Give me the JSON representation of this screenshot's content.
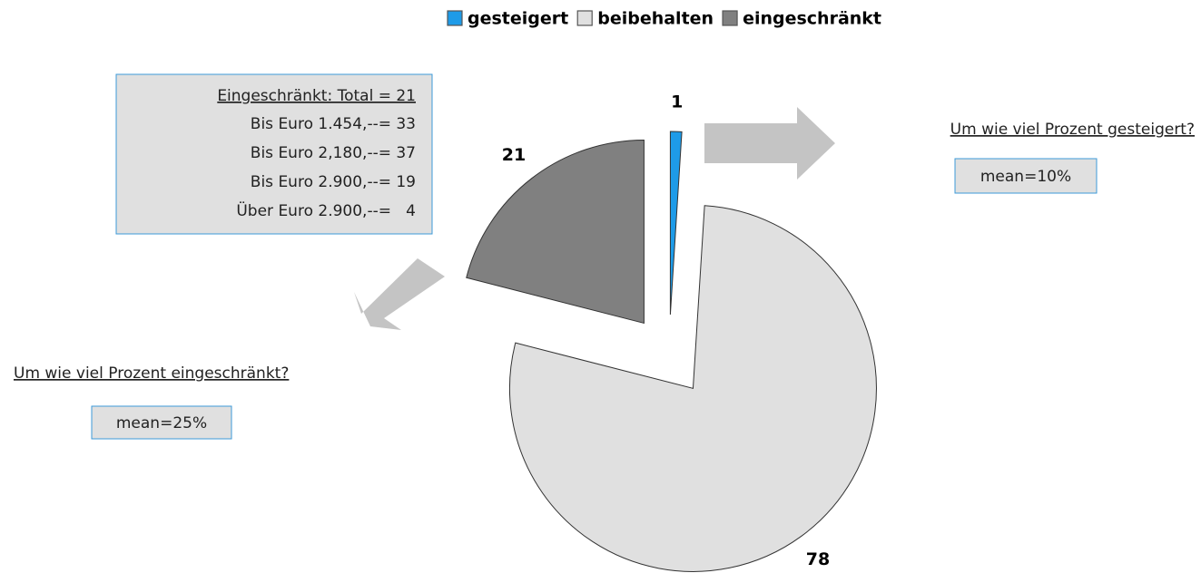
{
  "chart_data": {
    "type": "pie",
    "categories": [
      "gesteigert",
      "beibehalten",
      "eingeschränkt"
    ],
    "values": [
      1,
      78,
      21
    ],
    "colors": [
      "#1e9be8",
      "#e0e0e0",
      "#808080"
    ],
    "legend": "top",
    "annotations": {
      "left_box": [
        "Eingeschränkt: Total = 21",
        "Bis Euro 1.454,--= 33",
        "Bis Euro 2,180,--= 37",
        "Bis Euro 2.900,--= 19",
        "Über Euro 2.900,--=   4"
      ],
      "right_question": "Um wie viel Prozent gesteigert?",
      "right_mean": "mean=10%",
      "left_question": "Um wie viel Prozent eingeschränkt?",
      "left_mean": "mean=25%"
    }
  }
}
